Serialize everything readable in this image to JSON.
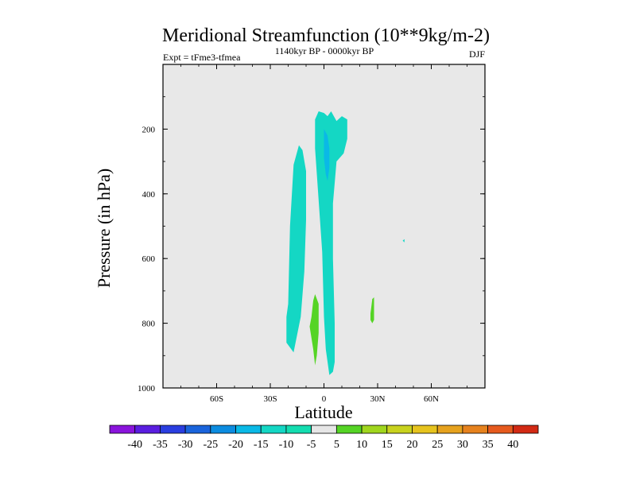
{
  "chart_data": {
    "type": "heatmap",
    "title": "Meridional Streamfunction (10**9kg/m-2)",
    "subtitle_left": "Expt = tFme3-tfmea",
    "subtitle_center": "1140kyr BP - 0000kyr BP",
    "subtitle_right": "DJF",
    "xlabel": "Latitude",
    "ylabel": "Pressure (in hPa)",
    "xlim": [
      -90,
      90
    ],
    "ylim": [
      1000,
      0
    ],
    "x_ticks": [
      {
        "value": -60,
        "label": "60S"
      },
      {
        "value": -30,
        "label": "30S"
      },
      {
        "value": 0,
        "label": "0"
      },
      {
        "value": 30,
        "label": "30N"
      },
      {
        "value": 60,
        "label": "60N"
      }
    ],
    "y_ticks": [
      {
        "value": 200,
        "label": "200"
      },
      {
        "value": 400,
        "label": "400"
      },
      {
        "value": 600,
        "label": "600"
      },
      {
        "value": 800,
        "label": "800"
      },
      {
        "value": 1000,
        "label": "1000"
      }
    ],
    "contour_regions": [
      {
        "name": "sh-cell-negative",
        "level": -10,
        "color": "#14d7c4",
        "points": [
          [
            -20,
            740
          ],
          [
            -19,
            500
          ],
          [
            -17,
            310
          ],
          [
            -14,
            250
          ],
          [
            -12,
            265
          ],
          [
            -10,
            330
          ],
          [
            -10,
            480
          ],
          [
            -11,
            640
          ],
          [
            -13,
            780
          ],
          [
            -17,
            890
          ],
          [
            -21,
            860
          ],
          [
            -21,
            780
          ]
        ]
      },
      {
        "name": "equatorial-negative",
        "level": -10,
        "color": "#14d7c4",
        "points": [
          [
            -5,
            170
          ],
          [
            -3,
            145
          ],
          [
            0,
            150
          ],
          [
            2,
            160
          ],
          [
            4,
            145
          ],
          [
            7,
            175
          ],
          [
            10,
            160
          ],
          [
            13,
            170
          ],
          [
            13,
            230
          ],
          [
            11,
            275
          ],
          [
            7,
            300
          ],
          [
            5,
            430
          ],
          [
            5,
            600
          ],
          [
            6,
            800
          ],
          [
            6,
            920
          ],
          [
            5,
            950
          ],
          [
            3,
            960
          ],
          [
            1,
            880
          ],
          [
            0,
            780
          ],
          [
            -1,
            580
          ],
          [
            -3,
            420
          ],
          [
            -5,
            260
          ]
        ]
      },
      {
        "name": "equatorial-core-negative",
        "level": -15,
        "color": "#0ab9e6",
        "points": [
          [
            0,
            200
          ],
          [
            2,
            220
          ],
          [
            3,
            260
          ],
          [
            3,
            320
          ],
          [
            2,
            360
          ],
          [
            1,
            340
          ],
          [
            0,
            290
          ]
        ]
      },
      {
        "name": "sh-surface-positive",
        "level": 5,
        "color": "#55d425",
        "points": [
          [
            -7,
            780
          ],
          [
            -6,
            730
          ],
          [
            -5,
            710
          ],
          [
            -3,
            740
          ],
          [
            -3,
            830
          ],
          [
            -4,
            900
          ],
          [
            -5,
            930
          ],
          [
            -6,
            880
          ],
          [
            -8,
            810
          ]
        ]
      },
      {
        "name": "nh-surface-positive",
        "level": 5,
        "color": "#55d425",
        "points": [
          [
            26,
            770
          ],
          [
            27,
            725
          ],
          [
            28,
            720
          ],
          [
            28,
            790
          ],
          [
            27,
            800
          ],
          [
            26,
            790
          ]
        ]
      },
      {
        "name": "nh-mid-negative",
        "level": -10,
        "color": "#14d7c4",
        "points": [
          [
            44,
            545
          ],
          [
            45,
            540
          ],
          [
            45,
            550
          ]
        ]
      }
    ],
    "colorbar": {
      "levels": [
        -40,
        -35,
        -30,
        -25,
        -20,
        -15,
        -10,
        -5,
        5,
        10,
        15,
        20,
        25,
        30,
        35,
        40
      ],
      "colors": [
        "#8a14dc",
        "#5a1ee0",
        "#2a3ee0",
        "#1a64dc",
        "#0c8ce0",
        "#0ab9e6",
        "#14d7c4",
        "#14ddb0",
        "#e6e6e6",
        "#55d425",
        "#a0d61e",
        "#c8d21e",
        "#e6c31e",
        "#e6a21e",
        "#e6821e",
        "#e65a1e",
        "#d22a14"
      ]
    },
    "background_color": "#e8e8e8"
  }
}
